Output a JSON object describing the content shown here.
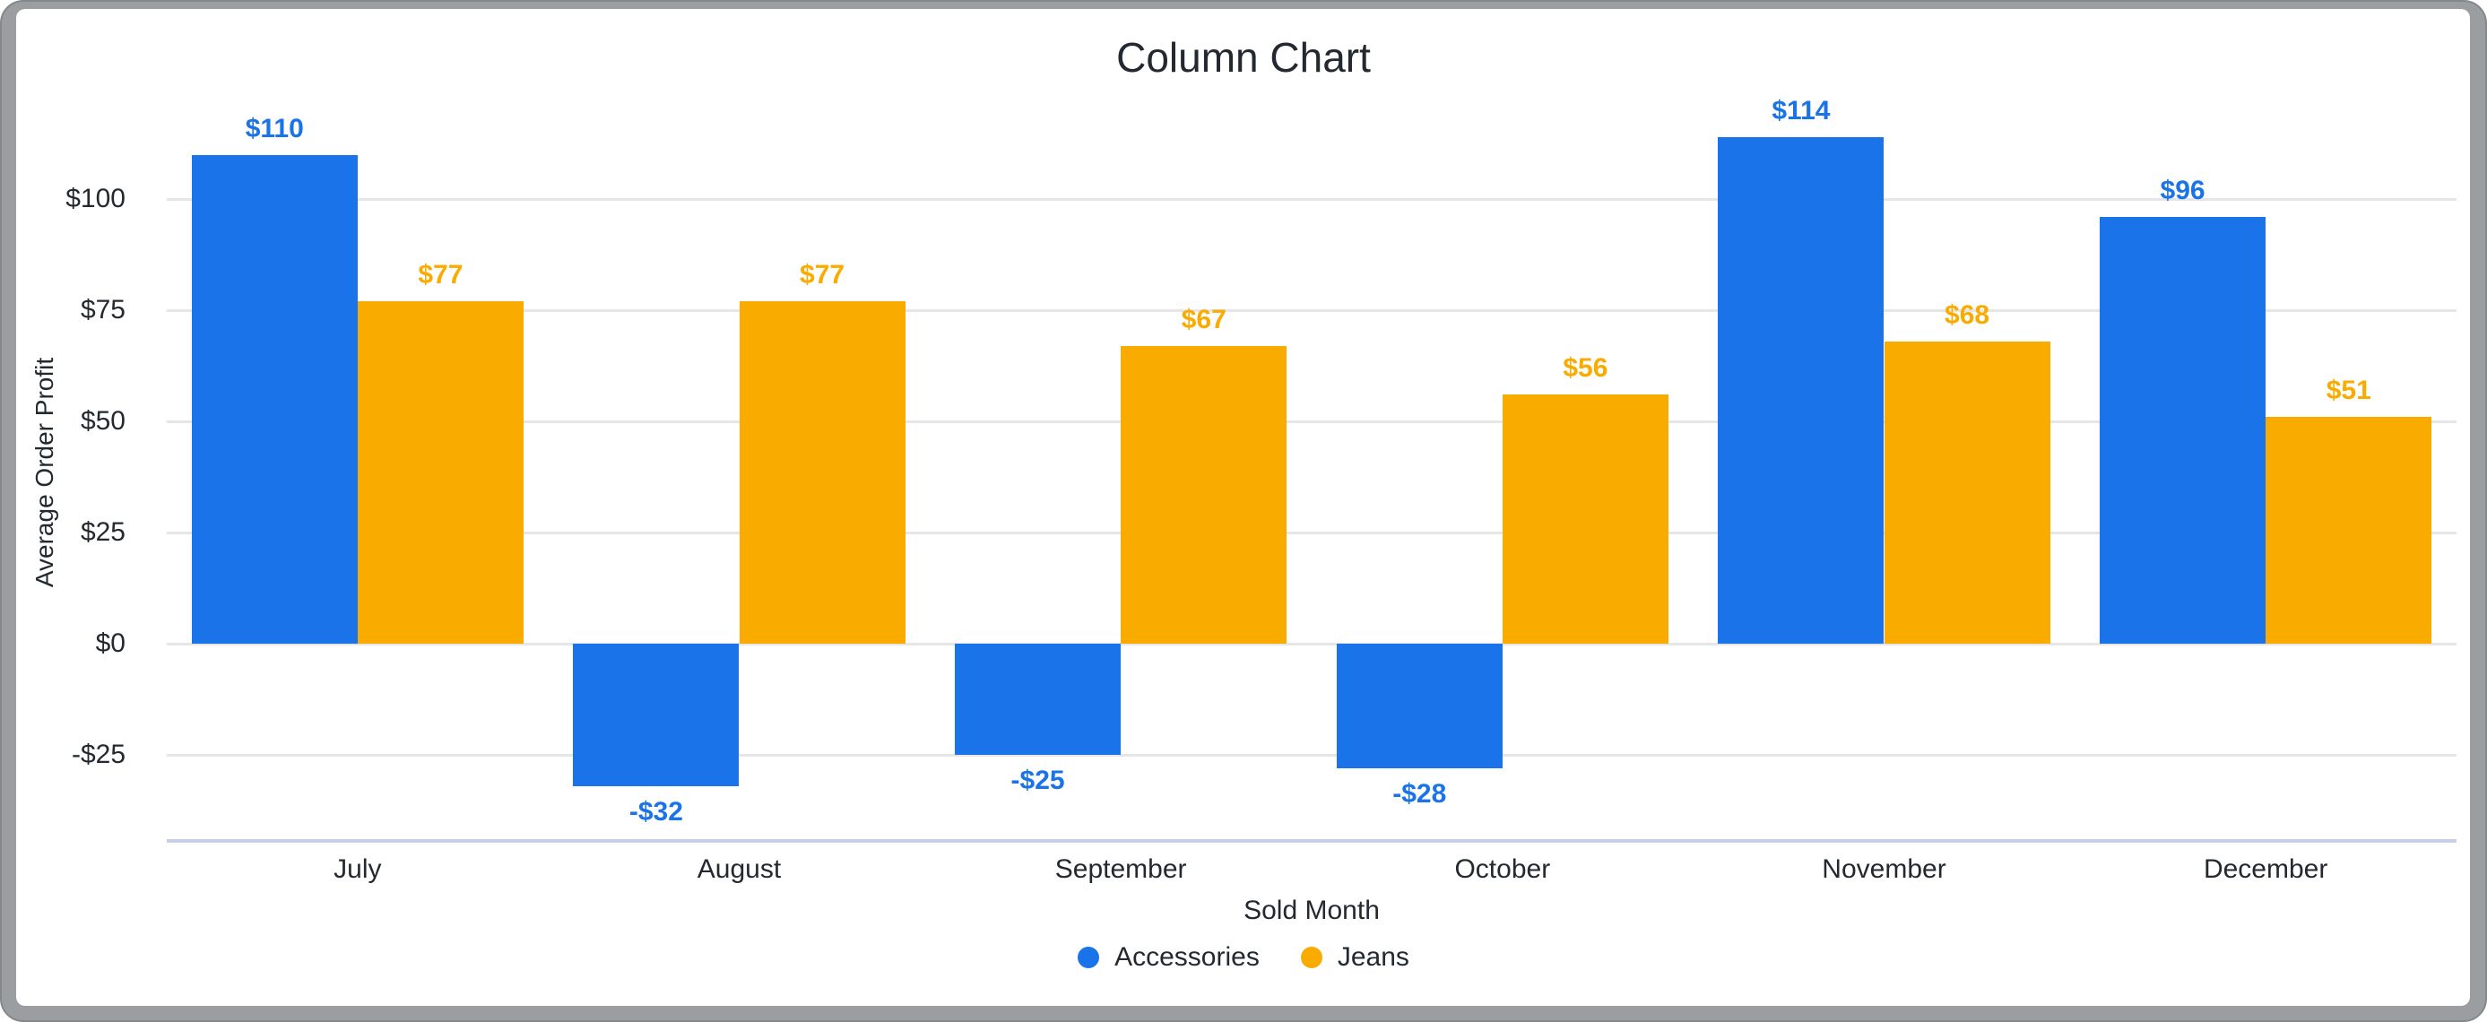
{
  "chart_data": {
    "type": "bar",
    "title": "Column Chart",
    "xlabel": "Sold Month",
    "ylabel": "Average Order Profit",
    "categories": [
      "July",
      "August",
      "September",
      "October",
      "November",
      "December"
    ],
    "series": [
      {
        "name": "Accessories",
        "color": "#1a73e8",
        "values": [
          110,
          -32,
          -25,
          -28,
          114,
          96
        ],
        "point_labels": [
          "$110",
          "-$32",
          "-$25",
          "-$28",
          "$114",
          "$96"
        ]
      },
      {
        "name": "Jeans",
        "color": "#f9ab00",
        "values": [
          77,
          77,
          67,
          56,
          68,
          51
        ],
        "point_labels": [
          "$77",
          "$77",
          "$67",
          "$56",
          "$68",
          "$51"
        ]
      }
    ],
    "y_axis": {
      "ticks": [
        {
          "value": -25,
          "label": "-$25"
        },
        {
          "value": 0,
          "label": "$0"
        },
        {
          "value": 25,
          "label": "$25"
        },
        {
          "value": 50,
          "label": "$50"
        },
        {
          "value": 75,
          "label": "$75"
        },
        {
          "value": 100,
          "label": "$100"
        }
      ],
      "ylim": [
        -44.8,
        121.6
      ]
    },
    "grid": true,
    "legend_position": "bottom"
  },
  "colors": {
    "accent_blue": "#1a73e8",
    "accent_orange": "#f9ab00",
    "grid": "#e6e6e6",
    "axis_line": "#c7d0e4",
    "text": "#24292f",
    "frame": "#9b9ea1"
  }
}
